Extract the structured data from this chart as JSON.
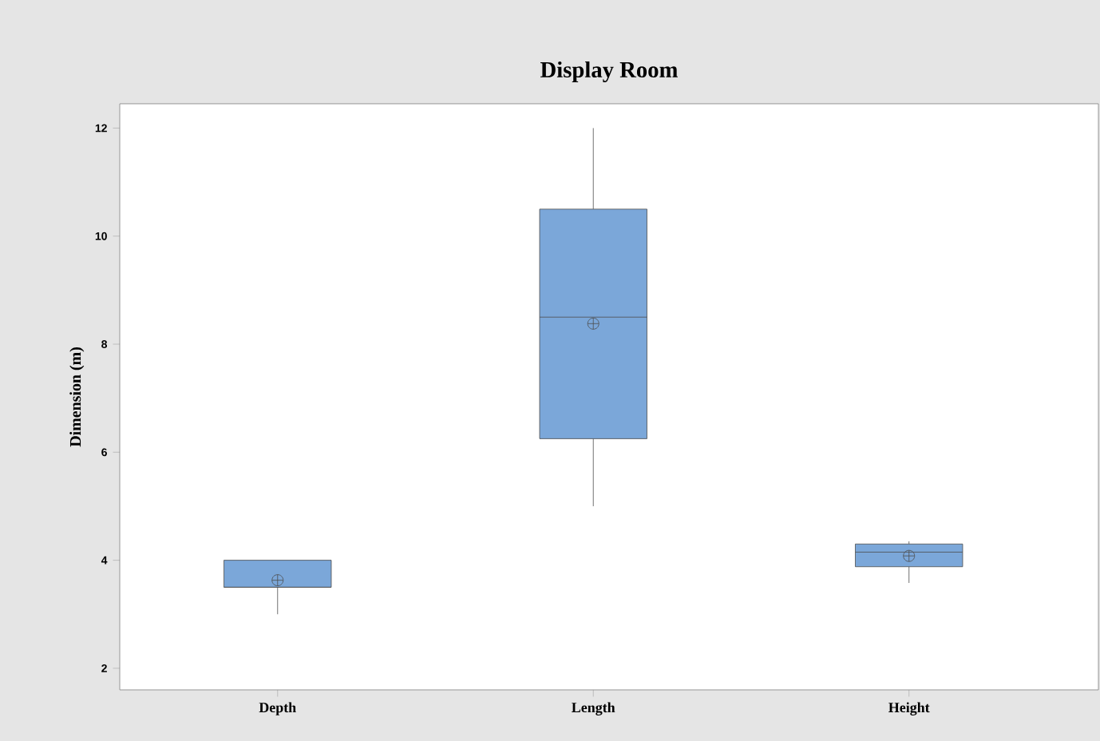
{
  "chart_data": {
    "type": "box",
    "title": "Display Room",
    "ylabel": "Dimension (m)",
    "categories": [
      "Depth",
      "Length",
      "Height"
    ],
    "boxes": [
      {
        "low": 3.0,
        "q1": 3.5,
        "median": 3.5,
        "q3": 4.0,
        "high": 4.0,
        "mean": 3.63
      },
      {
        "low": 5.0,
        "q1": 6.25,
        "median": 8.5,
        "q3": 10.5,
        "high": 12.0,
        "mean": 8.38
      },
      {
        "low": 3.58,
        "q1": 3.88,
        "median": 4.15,
        "q3": 4.3,
        "high": 4.35,
        "mean": 4.08
      }
    ],
    "color": "#7ba7d9",
    "ylim": [
      1.6,
      12.45
    ],
    "yticks": [
      2,
      4,
      6,
      8,
      10,
      12
    ],
    "grid": false
  }
}
